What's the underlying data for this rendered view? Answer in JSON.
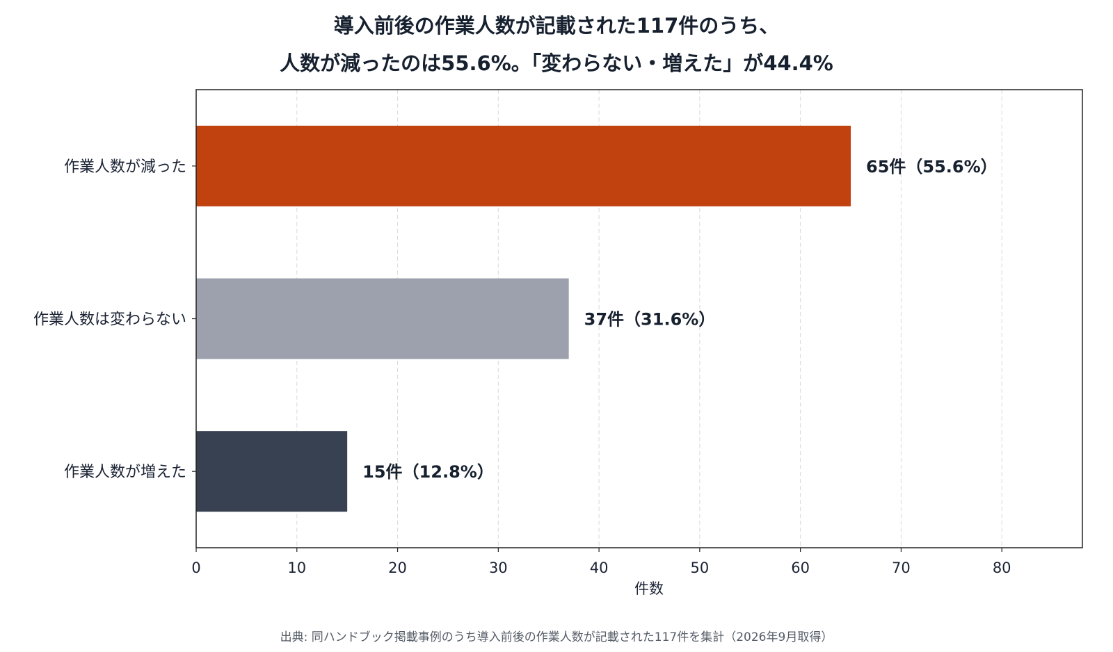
{
  "chart_data": {
    "type": "bar",
    "orientation": "horizontal",
    "title": [
      "導入前後の作業人数が記載された117件のうち、",
      "人数が減ったのは55.6%。「変わらない・増えた」が44.4%"
    ],
    "categories": [
      "作業人数が減った",
      "作業人数は変わらない",
      "作業人数が増えた"
    ],
    "values": [
      65,
      37,
      15
    ],
    "value_labels": [
      "65件（55.6%）",
      "37件（31.6%）",
      "15件（12.8%）"
    ],
    "colors": [
      "#c1410f",
      "#9ca1ad",
      "#374151"
    ],
    "xlabel": "件数",
    "ylabel": "",
    "xlim": [
      0,
      88
    ],
    "xticks": [
      0,
      10,
      20,
      30,
      40,
      50,
      60,
      70,
      80
    ],
    "grid": "vertical-dashed"
  },
  "source": "出典: 同ハンドブック掲載事例のうち導入前後の作業人数が記載された117件を集計（2026年9月取得）"
}
